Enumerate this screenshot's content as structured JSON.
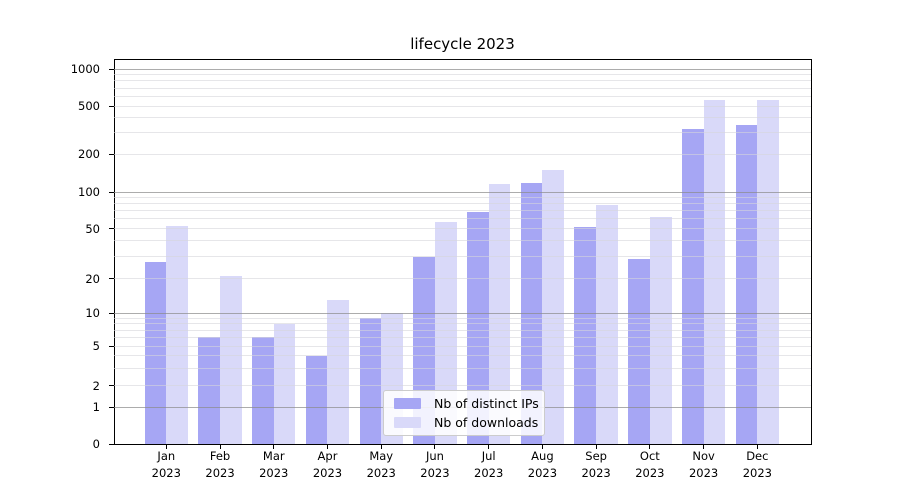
{
  "chart_data": {
    "type": "bar",
    "title": "lifecycle 2023",
    "categories": [
      "Jan",
      "Feb",
      "Mar",
      "Apr",
      "May",
      "Jun",
      "Jul",
      "Aug",
      "Sep",
      "Oct",
      "Nov",
      "Dec"
    ],
    "x_tick_year": "2023",
    "series": [
      {
        "name": "Nb of distinct IPs",
        "color": "#a6a6f4",
        "values": [
          27,
          6,
          6,
          4,
          9,
          30,
          68,
          118,
          51,
          29,
          320,
          350
        ]
      },
      {
        "name": "Nb of downloads",
        "color": "#d9d9f9",
        "values": [
          52,
          21,
          8,
          13,
          10,
          57,
          115,
          150,
          78,
          62,
          560,
          560
        ]
      }
    ],
    "yscale": "symlog",
    "ylim": [
      0,
      1000
    ],
    "y_ticks": [
      0,
      1,
      2,
      5,
      10,
      20,
      50,
      100,
      200,
      500,
      1000
    ],
    "grid": "horizontal major and minor gridlines",
    "legend_position": "lower center"
  }
}
